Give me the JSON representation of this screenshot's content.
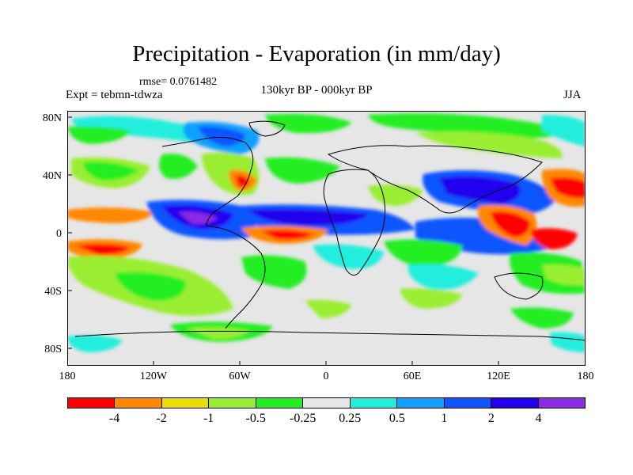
{
  "title": "Precipitation - Evaporation (in mm/day)",
  "rmse": "rmse= 0.0761482",
  "expt": "Expt = tebmn-tdwza",
  "period": "130kyr BP - 000kyr BP",
  "season": "JJA",
  "lat_labels": [
    "80N",
    "40N",
    "0",
    "40S",
    "80S"
  ],
  "lon_labels": [
    "180",
    "120W",
    "60W",
    "0",
    "60E",
    "120E",
    "180"
  ],
  "colorbar": {
    "colors": [
      "#ff0000",
      "#ff8800",
      "#e8dc00",
      "#99ee33",
      "#22ee22",
      "#e6e6e6",
      "#22eedd",
      "#11a0ff",
      "#1155ff",
      "#2200ee",
      "#8a2be2"
    ],
    "labels": [
      "-4",
      "-2",
      "-1",
      "-0.5",
      "-0.25",
      "0.25",
      "0.5",
      "1",
      "2",
      "4"
    ]
  }
}
